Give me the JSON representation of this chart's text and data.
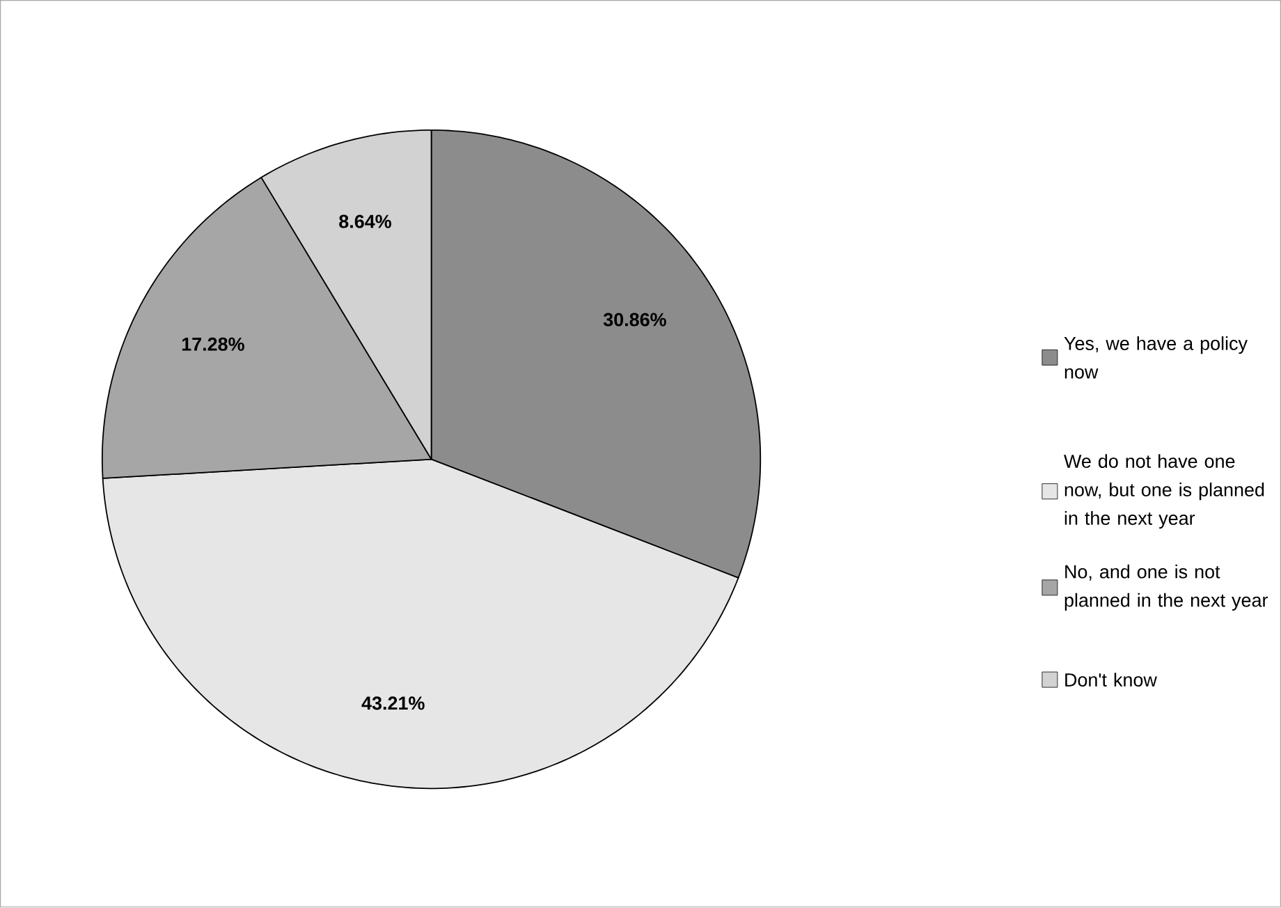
{
  "chart_data": {
    "type": "pie",
    "categories": [
      "Yes, we have a policy now",
      "We do not have one now, but one is planned in the next year",
      "No, and one is not planned in the next year",
      "Don't know"
    ],
    "values": [
      30.86,
      43.21,
      17.28,
      8.64
    ],
    "value_labels": [
      "30.86%",
      "43.21%",
      "17.28%",
      "8.64%"
    ],
    "colors": [
      "#8c8c8c",
      "#e6e6e6",
      "#a6a6a6",
      "#d2d2d2"
    ],
    "legend": "right"
  }
}
